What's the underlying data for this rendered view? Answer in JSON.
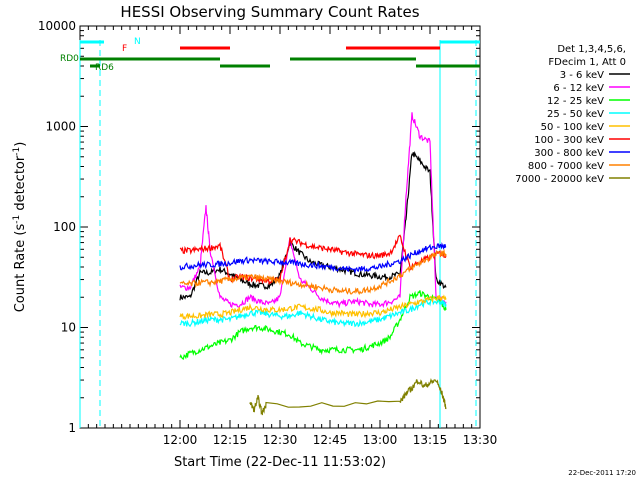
{
  "chart_data": {
    "type": "line",
    "title": "HESSI Observing Summary Count Rates",
    "xlabel": "Start Time (22-Dec-11 11:53:02)",
    "ylabel_main": "Count Rate (s",
    "ylabel_sup1": "-1",
    "ylabel_mid": " detector",
    "ylabel_sup2": "-1",
    "ylabel_end": ")",
    "y_scale": "log",
    "ylim": [
      1,
      10000
    ],
    "xlim_minutes": [
      11.5,
      13.5
    ],
    "x_ticks": [
      {
        "label": "12:00",
        "t": 12.0
      },
      {
        "label": "12:15",
        "t": 12.25
      },
      {
        "label": "12:30",
        "t": 12.5
      },
      {
        "label": "12:45",
        "t": 12.75
      },
      {
        "label": "13:00",
        "t": 13.0
      },
      {
        "label": "13:15",
        "t": 13.25
      },
      {
        "label": "13:30",
        "t": 13.5
      }
    ],
    "y_ticks": [
      {
        "label": "1",
        "v": 1
      },
      {
        "label": "10",
        "v": 10
      },
      {
        "label": "100",
        "v": 100
      },
      {
        "label": "1000",
        "v": 1000
      },
      {
        "label": "10000",
        "v": 10000
      }
    ],
    "legend_header": [
      "Det 1,3,4,5,6,",
      "FDecim 1, Att 0"
    ],
    "series": [
      {
        "name": "3 - 6 keV",
        "color": "#000000",
        "x": [
          12.0,
          12.05,
          12.1,
          12.15,
          12.2,
          12.25,
          12.3,
          12.35,
          12.4,
          12.45,
          12.5,
          12.55,
          12.6,
          12.65,
          12.7,
          12.75,
          12.8,
          12.85,
          12.9,
          12.95,
          13.0,
          13.05,
          13.1,
          13.13,
          13.16,
          13.2,
          13.25,
          13.28,
          13.33
        ],
        "y": [
          20,
          20,
          35,
          35,
          38,
          34,
          30,
          27,
          26,
          26,
          33,
          70,
          55,
          45,
          42,
          40,
          38,
          36,
          34,
          33,
          32,
          32,
          34,
          120,
          550,
          450,
          350,
          30,
          25
        ]
      },
      {
        "name": "6 - 12 keV",
        "color": "#ff00ff",
        "x": [
          12.0,
          12.05,
          12.1,
          12.13,
          12.15,
          12.2,
          12.25,
          12.3,
          12.35,
          12.4,
          12.45,
          12.5,
          12.55,
          12.6,
          12.65,
          12.7,
          12.75,
          12.8,
          12.85,
          12.9,
          12.95,
          13.0,
          13.05,
          13.1,
          13.13,
          13.16,
          13.2,
          13.25,
          13.28,
          13.33
        ],
        "y": [
          25,
          25,
          40,
          160,
          60,
          20,
          17,
          17,
          20,
          18,
          17,
          20,
          75,
          30,
          25,
          20,
          18,
          17,
          18,
          18,
          17,
          17,
          18,
          20,
          200,
          1300,
          800,
          700,
          20,
          18
        ]
      },
      {
        "name": "12 - 25 keV",
        "color": "#00ff00",
        "x": [
          12.0,
          12.05,
          12.1,
          12.15,
          12.2,
          12.25,
          12.3,
          12.35,
          12.4,
          12.45,
          12.5,
          12.55,
          12.6,
          12.65,
          12.7,
          12.75,
          12.8,
          12.85,
          12.9,
          12.95,
          13.0,
          13.05,
          13.1,
          13.15,
          13.2,
          13.25,
          13.3,
          13.33
        ],
        "y": [
          5,
          5.5,
          6,
          6.5,
          7,
          7.5,
          9,
          10,
          10,
          9.5,
          9,
          8.5,
          7,
          6.5,
          6,
          6,
          6,
          6,
          6,
          6.5,
          7,
          8,
          12,
          20,
          22,
          20,
          18,
          15
        ]
      },
      {
        "name": "25 - 50 keV",
        "color": "#00ffff",
        "x": [
          12.0,
          12.05,
          12.1,
          12.15,
          12.2,
          12.25,
          12.3,
          12.35,
          12.4,
          12.45,
          12.5,
          12.55,
          12.6,
          12.65,
          12.7,
          12.75,
          12.8,
          12.85,
          12.9,
          12.95,
          13.0,
          13.05,
          13.1,
          13.15,
          13.2,
          13.25,
          13.3,
          13.33
        ],
        "y": [
          11,
          11,
          11.5,
          12,
          12,
          12,
          13,
          14,
          14,
          13.5,
          13,
          13,
          14,
          13,
          12,
          11.5,
          11,
          11,
          11,
          11.5,
          12,
          13,
          14,
          15,
          17,
          18,
          18,
          17
        ]
      },
      {
        "name": "50 - 100 keV",
        "color": "#ffc000",
        "x": [
          12.0,
          12.05,
          12.1,
          12.15,
          12.2,
          12.25,
          12.3,
          12.35,
          12.4,
          12.45,
          12.5,
          12.55,
          12.6,
          12.65,
          12.7,
          12.75,
          12.8,
          12.85,
          12.9,
          12.95,
          13.0,
          13.05,
          13.1,
          13.15,
          13.2,
          13.25,
          13.3,
          13.33
        ],
        "y": [
          13,
          13,
          13,
          13.5,
          13.5,
          14,
          15,
          16,
          15.5,
          15,
          15,
          15.5,
          16,
          15.5,
          15,
          14,
          14,
          13.5,
          13.5,
          14,
          14,
          15,
          16,
          17,
          18,
          19,
          20,
          19
        ]
      },
      {
        "name": "100 - 300 keV",
        "color": "#ff0000",
        "x": [
          12.0,
          12.05,
          12.1,
          12.15,
          12.2,
          12.25,
          12.3,
          12.35,
          12.4,
          12.45,
          12.5,
          12.55,
          12.6,
          12.65,
          12.7,
          12.75,
          12.8,
          12.85,
          12.9,
          12.95,
          13.0,
          13.05,
          13.1,
          13.15,
          13.2,
          13.25,
          13.3,
          13.33
        ],
        "y": [
          58,
          58,
          60,
          62,
          65,
          30,
          32,
          31,
          30,
          29,
          30,
          75,
          70,
          65,
          62,
          60,
          57,
          55,
          53,
          52,
          52,
          55,
          80,
          40,
          45,
          50,
          55,
          52
        ]
      },
      {
        "name": "300 - 800 keV",
        "color": "#0000ff",
        "x": [
          12.0,
          12.05,
          12.1,
          12.15,
          12.2,
          12.25,
          12.3,
          12.35,
          12.4,
          12.45,
          12.5,
          12.55,
          12.6,
          12.65,
          12.7,
          12.75,
          12.8,
          12.85,
          12.9,
          12.95,
          13.0,
          13.05,
          13.1,
          13.15,
          13.2,
          13.25,
          13.3,
          13.33
        ],
        "y": [
          40,
          41,
          42,
          42,
          43,
          44,
          46,
          47,
          46,
          45,
          45,
          44,
          43,
          42,
          41,
          40,
          39,
          38,
          38,
          39,
          40,
          43,
          46,
          52,
          58,
          62,
          65,
          64
        ]
      },
      {
        "name": "800 - 7000 keV",
        "color": "#ff8000",
        "x": [
          12.0,
          12.05,
          12.1,
          12.15,
          12.2,
          12.25,
          12.3,
          12.35,
          12.4,
          12.45,
          12.5,
          12.55,
          12.6,
          12.65,
          12.7,
          12.75,
          12.8,
          12.85,
          12.9,
          12.95,
          13.0,
          13.05,
          13.1,
          13.15,
          13.2,
          13.25,
          13.3,
          13.33
        ],
        "y": [
          27,
          27,
          28,
          28,
          29,
          30,
          31,
          32,
          31,
          30,
          29,
          28,
          27,
          26,
          25,
          24,
          23,
          23,
          23,
          24,
          26,
          29,
          33,
          38,
          44,
          50,
          55,
          54
        ]
      },
      {
        "name": "7000 - 20000 keV",
        "color": "#808000",
        "x": [
          12.35,
          12.37,
          12.39,
          12.41,
          12.43,
          13.1,
          13.13,
          13.16,
          13.19,
          13.22,
          13.25,
          13.28,
          13.31,
          13.33
        ],
        "y": [
          1.8,
          1.5,
          2.0,
          1.4,
          1.7,
          1.8,
          2.2,
          2.5,
          3.0,
          2.6,
          2.8,
          3.0,
          2.2,
          1.6
        ]
      }
    ],
    "state_bars": [
      {
        "label": "N",
        "color": "#00ffff",
        "segments": [
          [
            11.5,
            11.62
          ],
          [
            13.3,
            13.5
          ]
        ]
      },
      {
        "label": "F",
        "color": "#ff0000",
        "segments": [
          [
            12.0,
            12.25
          ],
          [
            12.83,
            13.3
          ]
        ]
      },
      {
        "label": "RD0",
        "color": "#008000",
        "segments": [
          [
            11.5,
            12.2
          ],
          [
            12.55,
            13.18
          ]
        ]
      },
      {
        "label": "RD6",
        "color": "#008000",
        "segments": [
          [
            11.55,
            11.6
          ],
          [
            12.2,
            12.45
          ],
          [
            13.18,
            13.5
          ]
        ]
      }
    ],
    "vlines": [
      11.5,
      11.6,
      13.3,
      13.48
    ],
    "grid": false,
    "legend_position": "right"
  },
  "footer_timestamp": "22-Dec-2011 17:20"
}
